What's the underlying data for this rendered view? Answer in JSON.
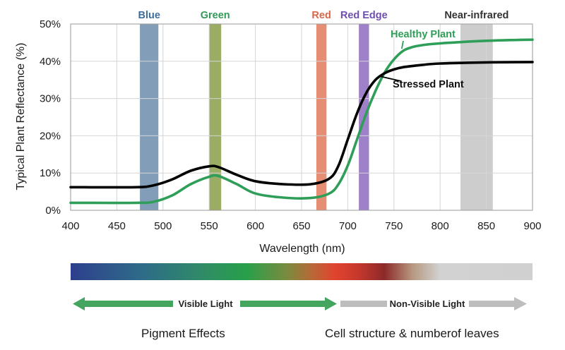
{
  "chart_data": {
    "type": "line",
    "title": "",
    "xlabel": "Wavelength (nm)",
    "ylabel": "Typical Plant Reflectance (%)",
    "xlim": [
      400,
      900
    ],
    "ylim": [
      0,
      50
    ],
    "xticks": [
      400,
      450,
      500,
      550,
      600,
      650,
      700,
      750,
      800,
      850,
      900
    ],
    "xtick_labels": [
      "400",
      "450",
      "500",
      "550",
      "600",
      "650",
      "700",
      "750",
      "800",
      "850",
      "900"
    ],
    "yticks": [
      0,
      10,
      20,
      30,
      40,
      50
    ],
    "ytick_labels": [
      "0%",
      "10%",
      "20%",
      "30%",
      "40%",
      "50%"
    ],
    "grid": true,
    "bands": [
      {
        "label": "Blue",
        "x_from": 475,
        "x_to": 495,
        "color": "#6b8cab",
        "label_color": "#3f6d9c"
      },
      {
        "label": "Green",
        "x_from": 550,
        "x_to": 563,
        "color": "#8a9d4a",
        "label_color": "#2f9a55"
      },
      {
        "label": "Red",
        "x_from": 666,
        "x_to": 677,
        "color": "#e07a5a",
        "label_color": "#d9664a"
      },
      {
        "label": "Red Edge",
        "x_from": 712,
        "x_to": 723,
        "color": "#8e6bc0",
        "label_color": "#6f4fb0"
      },
      {
        "label": "Near-infrared",
        "x_from": 822,
        "x_to": 857,
        "color": "#c4c4c4",
        "label_color": "#333333"
      }
    ],
    "series": [
      {
        "name": "Healthy Plant",
        "color": "#2e9e58",
        "x": [
          400,
          470,
          490,
          510,
          530,
          550,
          560,
          580,
          600,
          630,
          660,
          680,
          690,
          700,
          710,
          720,
          730,
          740,
          750,
          760,
          770,
          780,
          800,
          850,
          900
        ],
        "y": [
          2,
          2,
          2.3,
          4,
          7,
          9,
          9.2,
          7,
          4.5,
          3.4,
          3.3,
          4.5,
          7,
          12,
          19,
          26,
          32,
          37,
          40.5,
          42.8,
          43.8,
          44.3,
          44.8,
          45.5,
          45.8
        ]
      },
      {
        "name": "Stressed Plant",
        "color": "#000000",
        "x": [
          400,
          470,
          490,
          510,
          530,
          550,
          560,
          580,
          600,
          630,
          660,
          680,
          690,
          700,
          710,
          720,
          730,
          740,
          750,
          760,
          780,
          800,
          850,
          900
        ],
        "y": [
          6.2,
          6.2,
          6.7,
          8.3,
          10.6,
          11.8,
          11.6,
          9.5,
          7.8,
          7,
          7,
          8.5,
          12,
          19,
          26,
          31.5,
          35,
          36.8,
          37.8,
          38.4,
          39,
          39.4,
          39.7,
          39.8
        ]
      }
    ],
    "annotations": [
      {
        "text": "Healthy Plant",
        "series": "Healthy Plant",
        "point_x": 760
      },
      {
        "text": "Stressed Plant",
        "series": "Stressed Plant",
        "point_x": 738
      }
    ]
  },
  "spectrum_bar": {
    "stops": [
      {
        "offset": 0,
        "color": "#2d3f8c"
      },
      {
        "offset": 0.15,
        "color": "#2e6a8a"
      },
      {
        "offset": 0.3,
        "color": "#2f8f63"
      },
      {
        "offset": 0.38,
        "color": "#27a04a"
      },
      {
        "offset": 0.47,
        "color": "#7c8a3e"
      },
      {
        "offset": 0.52,
        "color": "#b56a38"
      },
      {
        "offset": 0.57,
        "color": "#e0452e"
      },
      {
        "offset": 0.62,
        "color": "#c8382c"
      },
      {
        "offset": 0.68,
        "color": "#8c2a2a"
      },
      {
        "offset": 0.74,
        "color": "#b79880"
      },
      {
        "offset": 0.8,
        "color": "#d2d2d2"
      },
      {
        "offset": 1,
        "color": "#d0d0d0"
      }
    ]
  },
  "legend_arrows": {
    "visible_label": "Visible Light",
    "visible_color": "#43a55e",
    "nonvisible_label": "Non-Visible Light",
    "nonvisible_color": "#bdbdbd"
  },
  "captions": {
    "left": "Pigment Effects",
    "right": "Cell structure & numberof leaves"
  }
}
